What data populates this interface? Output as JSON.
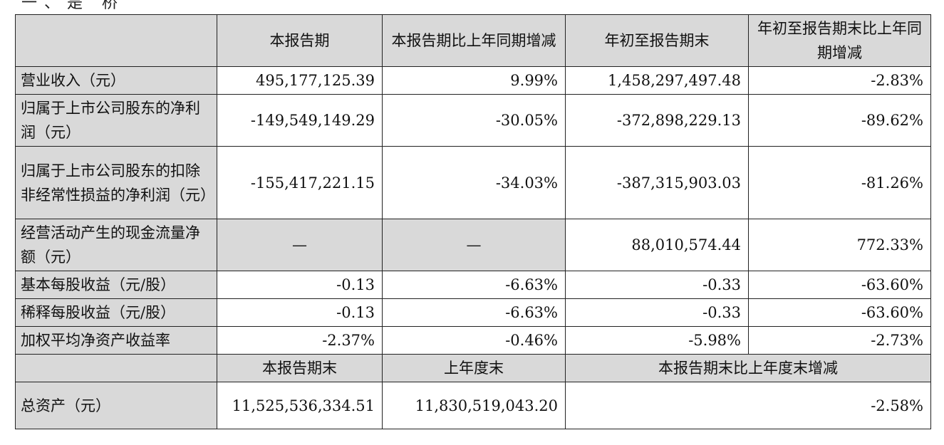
{
  "page_heading_fragment": "一、是  桥",
  "table": {
    "header": [
      "",
      "本报告期",
      "本报告期比上年同期增减",
      "年初至报告期末",
      "年初至报告期末比上年同期增减"
    ],
    "rows": [
      {
        "label": "营业收入（元）",
        "cells": [
          "495,177,125.39",
          "9.99%",
          "1,458,297,497.48",
          "-2.83%"
        ]
      },
      {
        "label": "归属于上市公司股东的净利润（元）",
        "cells": [
          "-149,549,149.29",
          "-30.05%",
          "-372,898,229.13",
          "-89.62%"
        ]
      },
      {
        "label": "归属于上市公司股东的扣除非经常性损益的净利润（元）",
        "cells": [
          "-155,417,221.15",
          "-34.03%",
          "-387,315,903.03",
          "-81.26%"
        ]
      },
      {
        "label": "经营活动产生的现金流量净额（元）",
        "cells": [
          "—",
          "—",
          "88,010,574.44",
          "772.33%"
        ]
      },
      {
        "label": "基本每股收益（元/股）",
        "cells": [
          "-0.13",
          "-6.63%",
          "-0.33",
          "-63.60%"
        ]
      },
      {
        "label": "稀释每股收益（元/股）",
        "cells": [
          "-0.13",
          "-6.63%",
          "-0.33",
          "-63.60%"
        ]
      },
      {
        "label": "加权平均净资产收益率",
        "cells": [
          "-2.37%",
          "-0.46%",
          "-5.98%",
          "-2.73%"
        ]
      }
    ],
    "subheader": [
      "",
      "本报告期末",
      "上年度末",
      "本报告期末比上年度末增减"
    ],
    "total_row": {
      "label": "总资产（元）",
      "cells": [
        "11,525,536,334.51",
        "11,830,519,043.20",
        "-2.58%"
      ]
    }
  }
}
